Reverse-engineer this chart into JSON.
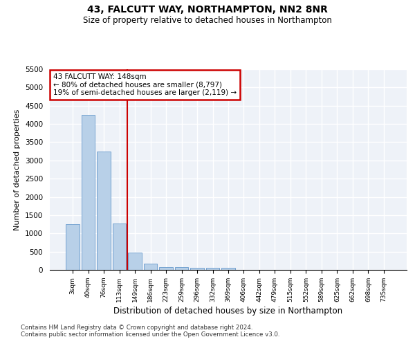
{
  "title1": "43, FALCUTT WAY, NORTHAMPTON, NN2 8NR",
  "title2": "Size of property relative to detached houses in Northampton",
  "xlabel": "Distribution of detached houses by size in Northampton",
  "ylabel": "Number of detached properties",
  "categories": [
    "3sqm",
    "40sqm",
    "76sqm",
    "113sqm",
    "149sqm",
    "186sqm",
    "223sqm",
    "259sqm",
    "296sqm",
    "332sqm",
    "369sqm",
    "406sqm",
    "442sqm",
    "479sqm",
    "515sqm",
    "552sqm",
    "589sqm",
    "625sqm",
    "662sqm",
    "698sqm",
    "735sqm"
  ],
  "values": [
    1250,
    4250,
    3250,
    1275,
    475,
    175,
    80,
    75,
    55,
    50,
    50,
    0,
    0,
    0,
    0,
    0,
    0,
    0,
    0,
    0,
    0
  ],
  "bar_color": "#b8d0e8",
  "bar_edge_color": "#6699cc",
  "red_line_x": 3.5,
  "annotation_line1": "43 FALCUTT WAY: 148sqm",
  "annotation_line2": "← 80% of detached houses are smaller (8,797)",
  "annotation_line3": "19% of semi-detached houses are larger (2,119) →",
  "annotation_box_color": "#ffffff",
  "annotation_box_edge": "#cc0000",
  "ylim": [
    0,
    5500
  ],
  "yticks": [
    0,
    500,
    1000,
    1500,
    2000,
    2500,
    3000,
    3500,
    4000,
    4500,
    5000,
    5500
  ],
  "bg_color": "#ffffff",
  "plot_bg_color": "#eef2f8",
  "grid_color": "#ffffff",
  "footnote1": "Contains HM Land Registry data © Crown copyright and database right 2024.",
  "footnote2": "Contains public sector information licensed under the Open Government Licence v3.0."
}
